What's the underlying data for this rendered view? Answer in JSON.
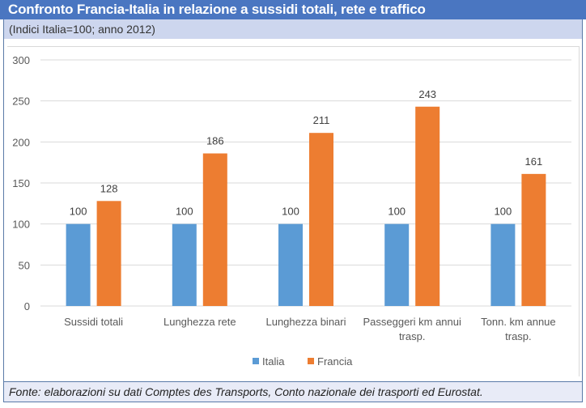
{
  "header": {
    "title": "Confronto Francia-Italia in relazione a sussidi totali, rete e traffico",
    "subtitle": "(Indici Italia=100; anno 2012)"
  },
  "footer": {
    "source": "Fonte: elaborazioni su dati Comptes des Transports, Conto nazionale dei trasporti ed Eurostat."
  },
  "colors": {
    "italia": "#5b9bd5",
    "francia": "#ed7d31",
    "header_bg": "#4a76c1",
    "subtitle_bg": "#cdd6ee"
  },
  "chart_data": {
    "type": "bar",
    "title": "Confronto Francia-Italia in relazione a sussidi totali, rete e traffico",
    "subtitle": "(Indici Italia=100; anno 2012)",
    "categories": [
      [
        "Sussidi totali"
      ],
      [
        "Lunghezza rete"
      ],
      [
        "Lunghezza binari"
      ],
      [
        "Passeggeri km annui",
        "trasp."
      ],
      [
        "Tonn. km annue",
        "trasp."
      ]
    ],
    "series": [
      {
        "name": "Italia",
        "values": [
          100,
          100,
          100,
          100,
          100
        ],
        "color": "#5b9bd5"
      },
      {
        "name": "Francia",
        "values": [
          128,
          186,
          211,
          243,
          161
        ],
        "color": "#ed7d31"
      }
    ],
    "xlabel": "",
    "ylabel": "",
    "ylim": [
      0,
      300
    ],
    "yticks": [
      0,
      50,
      100,
      150,
      200,
      250,
      300
    ],
    "grid": true,
    "legend": "bottom-center",
    "data_labels": true
  }
}
